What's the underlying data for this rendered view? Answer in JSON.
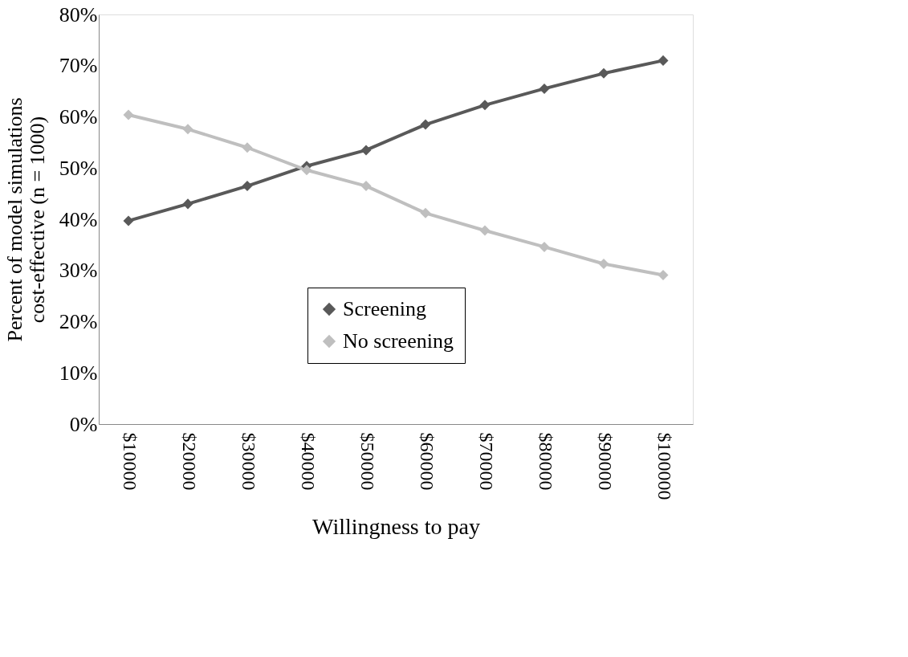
{
  "chart_data": {
    "type": "line",
    "xlabel": "Willingness to pay",
    "ylabel": "Percent of model simulations\ncost-effective  (n = 1000)",
    "categories": [
      "$10000",
      "$20000",
      "$30000",
      "$40000",
      "$50000",
      "$60000",
      "$70000",
      "$80000",
      "$90000",
      "$100000"
    ],
    "series": [
      {
        "name": "Screening",
        "color": "#595959",
        "values": [
          39.7,
          43,
          46.5,
          50.4,
          53.5,
          58.5,
          62.3,
          65.5,
          68.5,
          71
        ]
      },
      {
        "name": "No screening",
        "color": "#bfbfbf",
        "values": [
          60.4,
          57.6,
          54,
          49.6,
          46.5,
          41.2,
          37.8,
          34.6,
          31.3,
          29.1
        ]
      }
    ],
    "ylim": [
      0,
      80
    ],
    "yticks": [
      {
        "value": 0,
        "label": "0%"
      },
      {
        "value": 10,
        "label": "10%"
      },
      {
        "value": 20,
        "label": "20%"
      },
      {
        "value": 30,
        "label": "30%"
      },
      {
        "value": 40,
        "label": "40%"
      },
      {
        "value": 50,
        "label": "50%"
      },
      {
        "value": 60,
        "label": "60%"
      },
      {
        "value": 70,
        "label": "70%"
      },
      {
        "value": 80,
        "label": "80%"
      }
    ],
    "grid": false,
    "legend": "bottom",
    "marker": "diamond",
    "line_style": "solid"
  }
}
